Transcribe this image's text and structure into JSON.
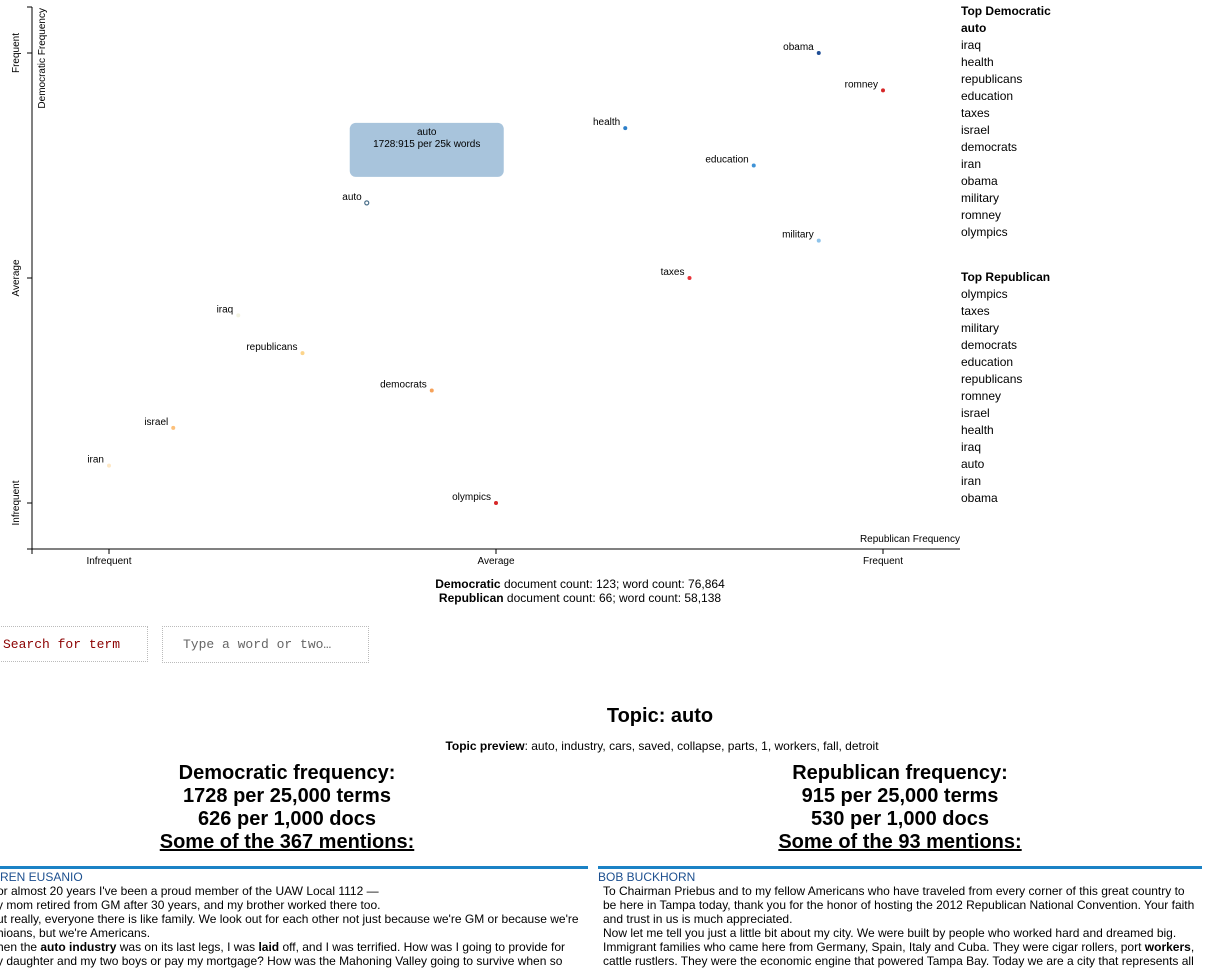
{
  "chart_data": {
    "type": "scatter",
    "title": "",
    "xlabel": "Republican Frequency",
    "ylabel": "Democratic Frequency",
    "x_tick_labels": [
      "Infrequent",
      "Average",
      "Frequent"
    ],
    "y_tick_labels": [
      "Frequent",
      "Average",
      "Infrequent"
    ],
    "x_scale": "rank (0 = least frequent, 1 = most frequent)",
    "y_scale": "rank (0 = least frequent, 1 = most frequent)",
    "points": [
      {
        "term": "obama",
        "x": 0.917,
        "y": 1.0,
        "color": "#1f4e96"
      },
      {
        "term": "romney",
        "x": 1.0,
        "y": 0.917,
        "color": "#d62728"
      },
      {
        "term": "health",
        "x": 0.667,
        "y": 0.833,
        "color": "#2c7fc9"
      },
      {
        "term": "education",
        "x": 0.833,
        "y": 0.75,
        "color": "#3e92d6"
      },
      {
        "term": "auto",
        "x": 0.333,
        "y": 0.667,
        "color": "#4a6f8a"
      },
      {
        "term": "military",
        "x": 0.917,
        "y": 0.583,
        "color": "#8ec3ea"
      },
      {
        "term": "taxes",
        "x": 0.75,
        "y": 0.5,
        "color": "#e8343a"
      },
      {
        "term": "iraq",
        "x": 0.167,
        "y": 0.417,
        "color": "#f3f3e2"
      },
      {
        "term": "republicans",
        "x": 0.25,
        "y": 0.333,
        "color": "#fcd48a"
      },
      {
        "term": "democrats",
        "x": 0.417,
        "y": 0.25,
        "color": "#f6a25a"
      },
      {
        "term": "israel",
        "x": 0.083,
        "y": 0.167,
        "color": "#fcc07a"
      },
      {
        "term": "iran",
        "x": 0.0,
        "y": 0.083,
        "color": "#fde8c6"
      },
      {
        "term": "olympics",
        "x": 0.5,
        "y": 0.0,
        "color": "#d62728"
      }
    ],
    "grid": false,
    "tooltip": {
      "term": "auto",
      "value": "1728:915 per 25k words",
      "color": "#a8c4dc"
    }
  },
  "top_democratic": {
    "heading": "Top Democratic",
    "active": "auto",
    "items": [
      "auto",
      "iraq",
      "health",
      "republicans",
      "education",
      "taxes",
      "israel",
      "democrats",
      "iran",
      "obama",
      "military",
      "romney",
      "olympics"
    ]
  },
  "top_republican": {
    "heading": "Top Republican",
    "items": [
      "olympics",
      "taxes",
      "military",
      "democrats",
      "education",
      "republicans",
      "romney",
      "israel",
      "health",
      "iraq",
      "auto",
      "iran",
      "obama"
    ]
  },
  "counts": {
    "dem_label": "Democratic",
    "dem_text": " document count: 123; word count: 76,864",
    "rep_label": "Republican",
    "rep_text": " document count: 66; word count: 58,138"
  },
  "search": {
    "button_label": "Search for term",
    "placeholder": "Type a word or two…"
  },
  "topic": {
    "title": "Topic: auto",
    "preview_label": "Topic preview",
    "preview_text": ": auto, industry, cars, saved, collapse, parts, 1, workers, fall, detroit"
  },
  "democratic": {
    "heading": "Democratic frequency:",
    "per_terms": "1728 per 25,000 terms",
    "per_docs": "626 per 1,000 docs",
    "mentions": "Some of the 367 mentions:",
    "snippet": {
      "speaker": "aren eusanio",
      "lines": [
        "or almost 20 years I've been a proud member of the UAW Local 1112 —",
        "y mom retired from GM after 30 years, and my brother worked there too.",
        "ut really, everyone there is like family. We look out for each other not just because we're GM or because we're",
        "hioans, but we're Americans."
      ],
      "line5_a": "hen the ",
      "line5_bold1": "auto industry",
      "line5_b": " was on its last legs, I was ",
      "line5_bold2": "laid",
      "line5_c": " off, and I was terrified. How was I going to provide for",
      "line6": "y daughter and my two boys or pay my mortgage? How was the Mahoning Valley going to survive when so"
    }
  },
  "republican": {
    "heading": "Republican frequency:",
    "per_terms": "915 per 25,000 terms",
    "per_docs": "530 per 1,000 docs",
    "mentions": "Some of the 93 mentions:",
    "snippet": {
      "speaker": "bob buckhorn",
      "lines": [
        "To Chairman Priebus and to my fellow Americans who have traveled from every corner of this great country to",
        "be here in Tampa today, thank you for the honor of hosting the 2012 Republican National Convention. Your faith",
        "and trust in us is much appreciated.",
        "Now let me tell you just a little bit about my city. We were built by people who worked hard and dreamed big."
      ],
      "line5_a": "Immigrant families who came here from Germany, Spain, Italy and Cuba. They were cigar rollers, port ",
      "line5_bold1": "workers",
      "line5_b": ",",
      "line6": "cattle rustlers. They were the economic engine that powered Tampa Bay. Today we are a city that represents all"
    }
  }
}
